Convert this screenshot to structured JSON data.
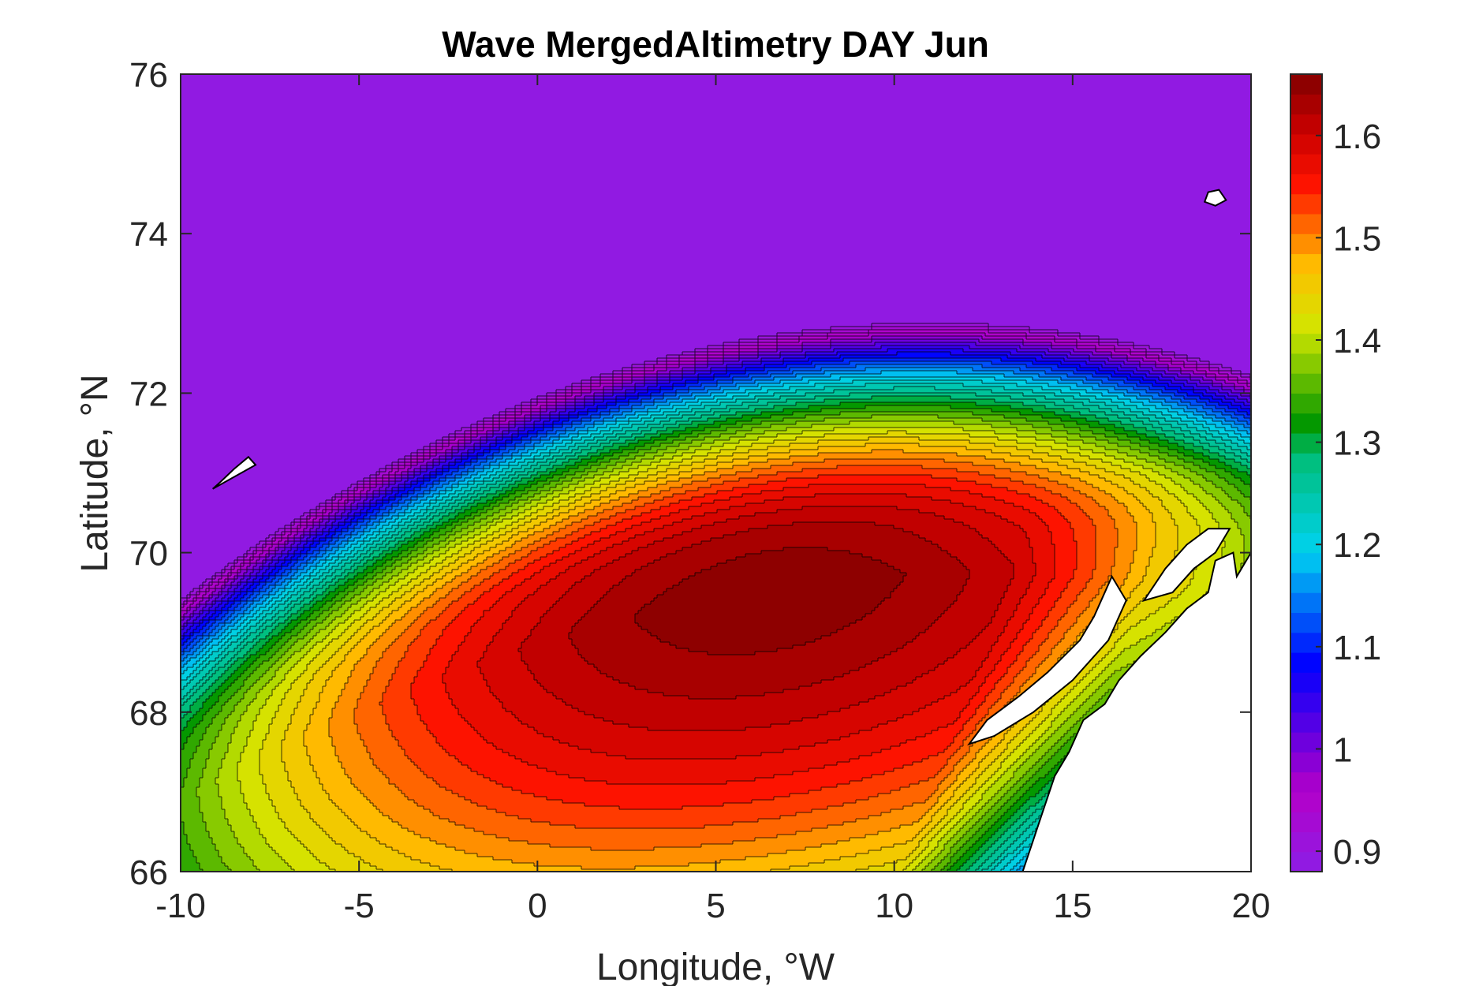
{
  "chart_data": {
    "type": "heatmap",
    "title": "Wave MergedAltimetry DAY Jun",
    "xlabel": "Longitude, °W",
    "ylabel": "Latitude, °N",
    "xlim": [
      -10,
      20
    ],
    "ylim": [
      66,
      76
    ],
    "x_ticks": [
      -10,
      -5,
      0,
      5,
      10,
      15,
      20
    ],
    "y_ticks": [
      66,
      68,
      70,
      72,
      74,
      76
    ],
    "colorbar": {
      "clim": [
        0.88,
        1.66
      ],
      "ticks": [
        0.9,
        1,
        1.1,
        1.2,
        1.3,
        1.4,
        1.5,
        1.6
      ],
      "tick_labels": [
        "0.9",
        "1",
        "1.1",
        "1.2",
        "1.3",
        "1.4",
        "1.5",
        "1.6"
      ],
      "colormap": "jet-like"
    },
    "field": {
      "description": "significant wave height contours",
      "maximum": {
        "x": 6.5,
        "y": 69.5,
        "value": 1.66
      },
      "minimum": {
        "x": -5,
        "y": 75.8,
        "value": 0.9
      }
    },
    "grid": false,
    "legend": "colorbar-right",
    "colors": {
      "land": "#ffffff",
      "coast": "#000000",
      "contour_line": "#000000"
    }
  }
}
